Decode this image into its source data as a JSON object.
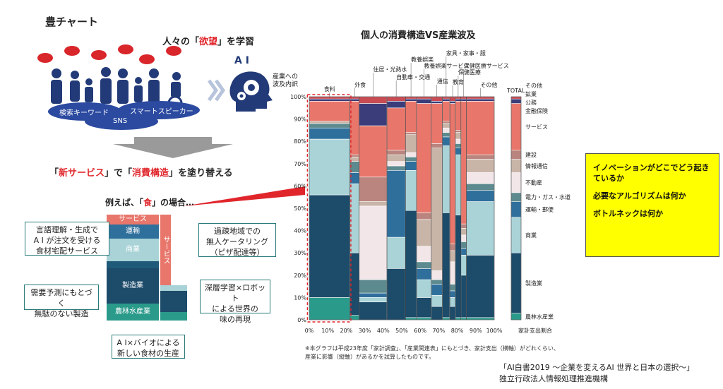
{
  "page_title": "豊チャート",
  "left": {
    "learn_pre": "人々の「",
    "learn_red": "欲望",
    "learn_post": "」を学習",
    "ai_label": "A I",
    "oval_labels": [
      "検索キーワード",
      "スマートスピーカー",
      "SNS"
    ],
    "repaint_pre": "「",
    "repaint_red1": "新サービス",
    "repaint_mid": "」で「",
    "repaint_red2": "消費構造",
    "repaint_post": "」を塗り替える",
    "food_pre": "例えば、「",
    "food_red": "食",
    "food_post": "」の場合…",
    "mini_chart": {
      "left_segments": [
        {
          "label": "サービス",
          "color": "#e8766b"
        },
        {
          "label": "運輸",
          "color": "#2f6f9c"
        },
        {
          "label": "商業",
          "color": "#a9d3d7"
        },
        {
          "label": "",
          "color": "#1f5a7a"
        },
        {
          "label": "製造業",
          "color": "#1d4b6a"
        },
        {
          "label": "農林水産業",
          "color": "#2a9a8a"
        }
      ],
      "right_segments": [
        {
          "label": "サービス",
          "color": "#e8766b"
        },
        {
          "label": "",
          "color": "#a9d3d7"
        },
        {
          "label": "",
          "color": "#1d4b6a"
        },
        {
          "label": "",
          "color": "#2a9a8a"
        }
      ]
    },
    "callouts": [
      "言語理解・生成で\nA I が注文を受ける\n食材宅配サービス",
      "過疎地域での\n無人ケータリング\n（ピザ配達等）",
      "需要予測にもとづく\n無駄のない製造",
      "深層学習×ロボット\nによる世界の\n味の再現",
      "A I×バイオによる\n新しい食材の生産"
    ]
  },
  "chart_data": {
    "type": "bar",
    "subtype": "marimekko (variable-width stacked bar)",
    "title": "個人の消費構造VS産業波及",
    "ylabel": "産業への\n波及内訳",
    "xlabel": "家計支出割合",
    "x_ticks": [
      "0%",
      "10%",
      "20%",
      "30%",
      "40%",
      "50%",
      "60%",
      "70%",
      "80%",
      "90%",
      "100%"
    ],
    "y_ticks": [
      "0%",
      "10%",
      "20%",
      "30%",
      "40%",
      "50%",
      "60%",
      "70%",
      "80%",
      "90%",
      "100%"
    ],
    "xlim": [
      0,
      100
    ],
    "ylim": [
      0,
      100
    ],
    "industries": [
      "農林水産業",
      "製造業",
      "商業",
      "運輸・郵便",
      "電力・ガス・水道",
      "不動産",
      "情報通信",
      "建設",
      "サービス",
      "金融保険",
      "公務",
      "鉱業",
      "その他"
    ],
    "industry_colors": [
      "#2a9a8a",
      "#1d4b6a",
      "#a9d3d7",
      "#2f6f9c",
      "#5d8a8e",
      "#f3e6e8",
      "#c9b4a8",
      "#b9857e",
      "#e8766b",
      "#3a3d7a",
      "#6f87ad",
      "#7aa0c8",
      "#c94c55"
    ],
    "categories": [
      {
        "name": "食料",
        "x0": 0,
        "x1": 22,
        "values": [
          10,
          46,
          25,
          5,
          2,
          0,
          1,
          0,
          9,
          1,
          0,
          0,
          1
        ]
      },
      {
        "name": "外食",
        "x0": 22,
        "x1": 27,
        "values": [
          2,
          28,
          31,
          5,
          5,
          0,
          2,
          1,
          24,
          1,
          0,
          0,
          1
        ]
      },
      {
        "name": "住居・光熱水",
        "x0": 27,
        "x1": 42,
        "values": [
          0,
          8,
          2,
          2,
          6,
          33,
          2,
          11,
          23,
          10,
          0,
          0,
          3
        ]
      },
      {
        "name": "自動車・交通",
        "x0": 42,
        "x1": 52,
        "values": [
          0,
          23,
          14,
          30,
          2,
          2,
          3,
          2,
          19,
          3,
          0,
          0,
          2
        ]
      },
      {
        "name": "教養娯楽",
        "x0": 52,
        "x1": 58,
        "values": [
          1,
          48,
          18,
          4,
          2,
          2,
          8,
          1,
          14,
          1,
          0,
          0,
          1
        ]
      },
      {
        "name": "教養娯楽サービス",
        "x0": 58,
        "x1": 66,
        "values": [
          1,
          9,
          8,
          5,
          3,
          7,
          12,
          3,
          49,
          2,
          0,
          0,
          1
        ]
      },
      {
        "name": "通信",
        "x0": 66,
        "x1": 72,
        "values": [
          0,
          6,
          5,
          5,
          2,
          4,
          55,
          2,
          18,
          1,
          0,
          0,
          2
        ]
      },
      {
        "name": "家具・家事・服",
        "x0": 72,
        "x1": 76,
        "values": [
          1,
          47,
          30,
          4,
          2,
          2,
          2,
          1,
          9,
          1,
          0,
          0,
          1
        ]
      },
      {
        "name": "教育",
        "x0": 76,
        "x1": 79,
        "values": [
          0,
          6,
          4,
          3,
          3,
          10,
          5,
          3,
          63,
          1,
          0,
          0,
          2
        ]
      },
      {
        "name": "保健医療",
        "x0": 79,
        "x1": 82,
        "values": [
          1,
          46,
          27,
          3,
          2,
          2,
          3,
          1,
          13,
          1,
          0,
          0,
          1
        ]
      },
      {
        "name": "保健医療サービス",
        "x0": 82,
        "x1": 85,
        "values": [
          1,
          19,
          9,
          3,
          3,
          3,
          3,
          2,
          55,
          1,
          0,
          0,
          1
        ]
      },
      {
        "name": "その他",
        "x0": 85,
        "x1": 100,
        "values": [
          1,
          28,
          24,
          5,
          3,
          5,
          6,
          2,
          24,
          1,
          0,
          0,
          1
        ]
      }
    ],
    "total": {
      "name": "TOTAL",
      "values": [
        3,
        27,
        16,
        7,
        4,
        9,
        6,
        4,
        21,
        2,
        0,
        0,
        1
      ]
    },
    "right_legend": [
      "その他",
      "鉱業",
      "公務",
      "金融保険",
      "サービス",
      "建設",
      "情報通信",
      "不動産",
      "電力・ガス・水道",
      "運輸・郵便",
      "商業",
      "製造業",
      "農林水産業"
    ],
    "footnote": "※本グラフは平成23年度「家計調査」、「産業関連表」にもとづき、家計支出（横軸）がどれくらい、\n産業に影響（縦軸）があるかを試算したものです。"
  },
  "yellow_box": [
    "イノベーションがどこでどう起き\nているか",
    "必要なアルゴリズムは何か",
    "ボトルネックは何か"
  ],
  "source": [
    "「AI白書2019 ～企業を変えるAI 世界と日本の選択～」",
    "独立行政法人情報処理推進機構"
  ]
}
